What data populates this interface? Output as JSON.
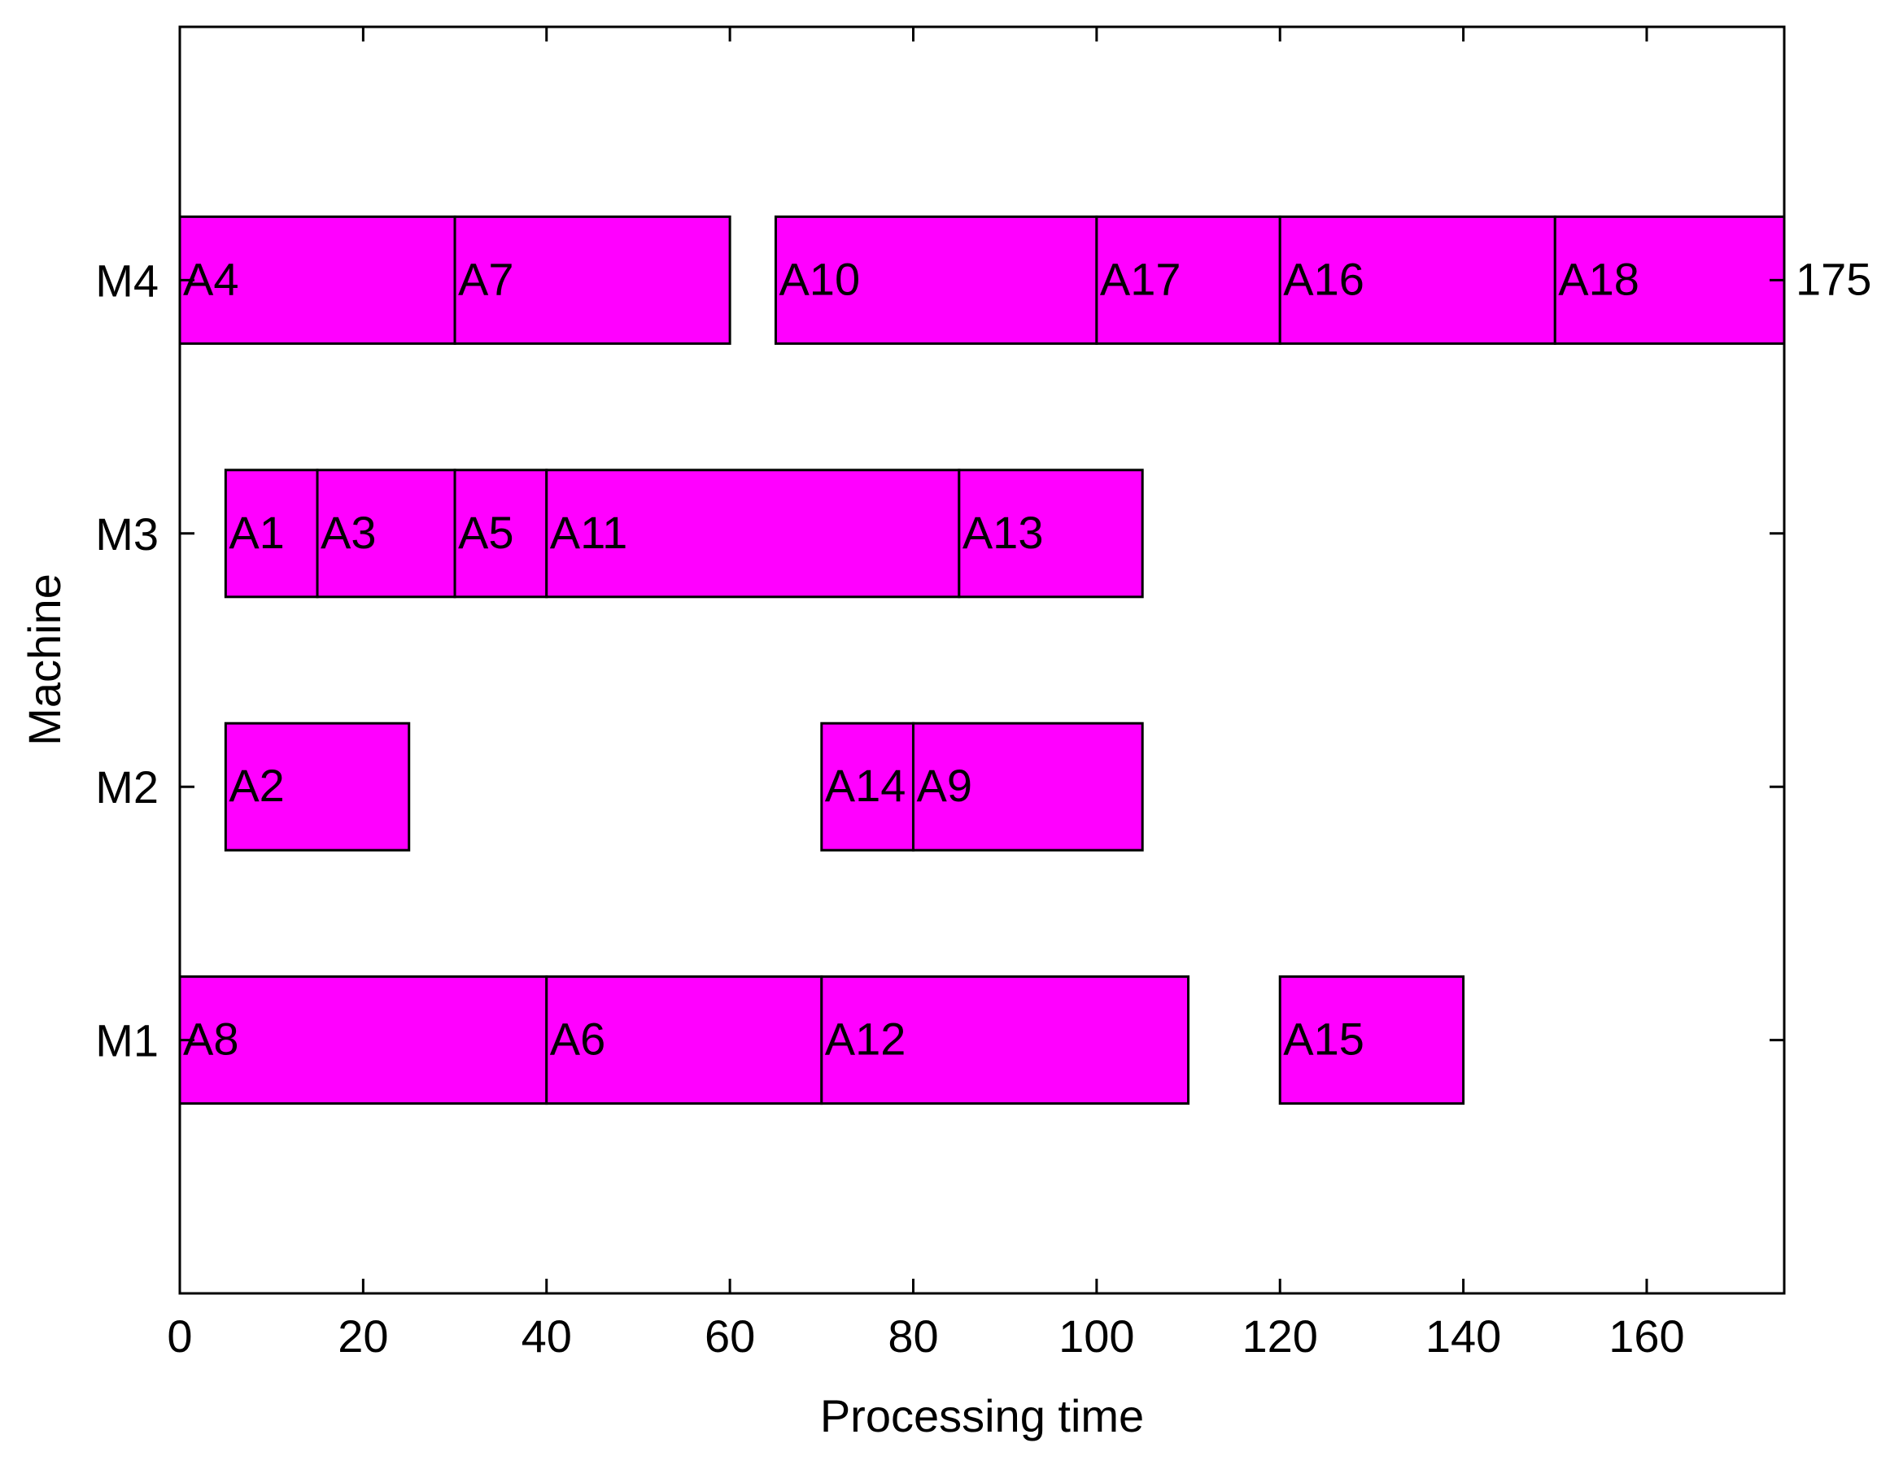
{
  "chart_data": {
    "type": "bar",
    "subtype": "gantt",
    "xlabel": "Processing time",
    "ylabel": "Machine",
    "xlim": [
      0,
      175
    ],
    "ylim": [
      0,
      5
    ],
    "xticks": [
      0,
      20,
      40,
      60,
      80,
      100,
      120,
      140,
      160
    ],
    "xtick_labels": [
      "0",
      "20",
      "40",
      "60",
      "80",
      "100",
      "120",
      "140",
      "160"
    ],
    "yticks": [
      1,
      2,
      3,
      4
    ],
    "machines": [
      "M1",
      "M2",
      "M3",
      "M4"
    ],
    "bar_color": "#ff00ff",
    "edge_color": "#000000",
    "grid": false,
    "makespan": 175,
    "makespan_label": "175",
    "tasks": [
      {
        "machine": "M1",
        "label": "A8",
        "start": 0,
        "end": 40
      },
      {
        "machine": "M1",
        "label": "A6",
        "start": 40,
        "end": 70
      },
      {
        "machine": "M1",
        "label": "A12",
        "start": 70,
        "end": 110
      },
      {
        "machine": "M1",
        "label": "A15",
        "start": 120,
        "end": 140
      },
      {
        "machine": "M2",
        "label": "A2",
        "start": 5,
        "end": 25
      },
      {
        "machine": "M2",
        "label": "A14",
        "start": 70,
        "end": 80
      },
      {
        "machine": "M2",
        "label": "A9",
        "start": 80,
        "end": 105
      },
      {
        "machine": "M3",
        "label": "A1",
        "start": 5,
        "end": 15
      },
      {
        "machine": "M3",
        "label": "A3",
        "start": 15,
        "end": 30
      },
      {
        "machine": "M3",
        "label": "A5",
        "start": 30,
        "end": 40
      },
      {
        "machine": "M3",
        "label": "A11",
        "start": 40,
        "end": 85
      },
      {
        "machine": "M3",
        "label": "A13",
        "start": 85,
        "end": 105
      },
      {
        "machine": "M4",
        "label": "A4",
        "start": 0,
        "end": 30
      },
      {
        "machine": "M4",
        "label": "A7",
        "start": 30,
        "end": 60
      },
      {
        "machine": "M4",
        "label": "A10",
        "start": 65,
        "end": 100
      },
      {
        "machine": "M4",
        "label": "A17",
        "start": 100,
        "end": 120
      },
      {
        "machine": "M4",
        "label": "A16",
        "start": 120,
        "end": 150
      },
      {
        "machine": "M4",
        "label": "A18",
        "start": 150,
        "end": 175
      }
    ]
  }
}
